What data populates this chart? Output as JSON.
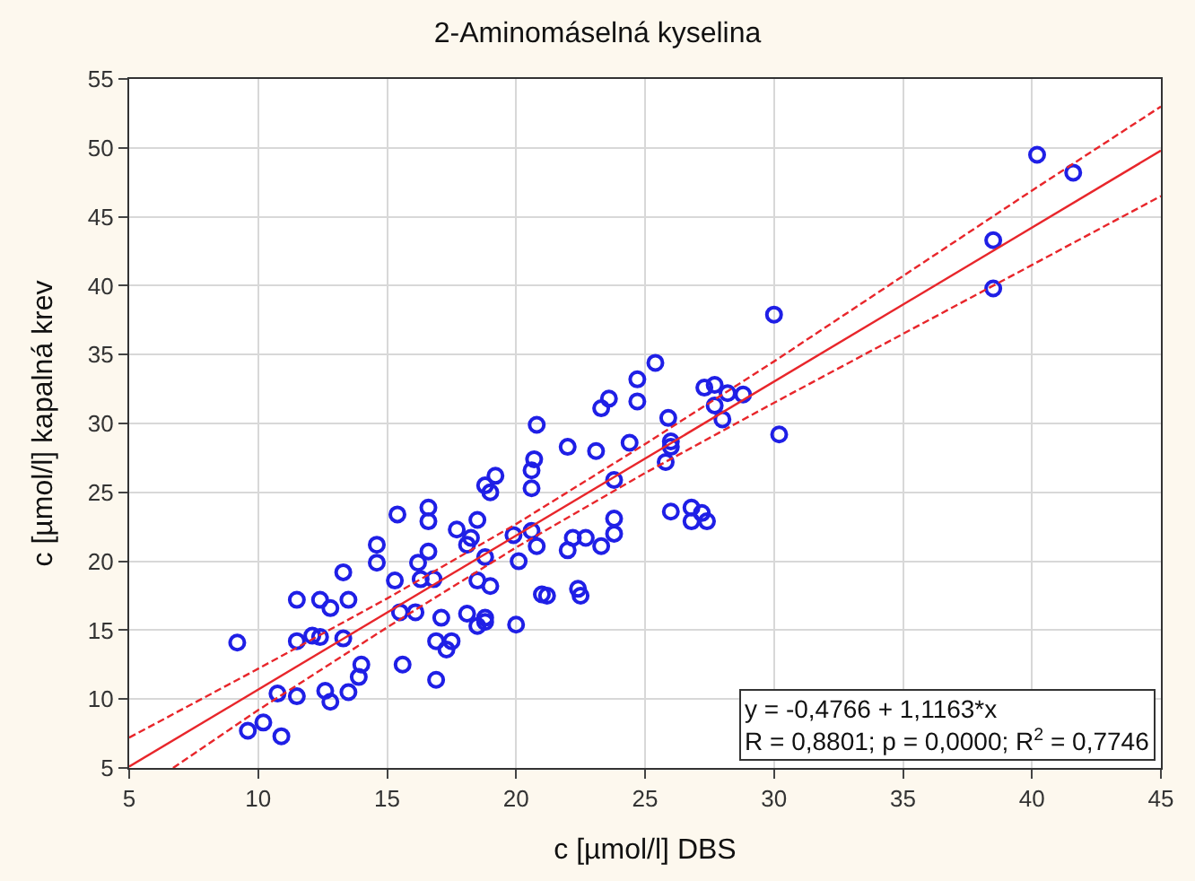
{
  "chart_data": {
    "type": "scatter",
    "title": "2-Aminomáselná kyselina",
    "xlabel": "c [µmol/l] DBS",
    "ylabel": "c [µmol/l] kapalná krev",
    "xlim": [
      5,
      45
    ],
    "xticks": [
      5,
      10,
      15,
      20,
      25,
      30,
      35,
      40,
      45
    ],
    "ylim": [
      5,
      55
    ],
    "yticks": [
      5,
      10,
      15,
      20,
      25,
      30,
      35,
      40,
      45,
      50,
      55
    ],
    "grid": true,
    "series": [
      {
        "marker": "circle",
        "color": "#1f1fe6",
        "x": [
          9.19,
          9.6,
          10.2,
          10.9,
          10.75,
          11.5,
          11.5,
          11.5,
          12.1,
          12.4,
          12.4,
          12.8,
          13.5,
          13.3,
          13.3,
          12.6,
          12.8,
          13.5,
          13.9,
          14.0,
          14.6,
          14.6,
          15.4,
          15.3,
          15.5,
          15.6,
          16.1,
          16.2,
          16.3,
          16.8,
          16.6,
          16.6,
          16.6,
          17.7,
          17.1,
          16.9,
          17.5,
          17.3,
          16.9,
          18.1,
          18.25,
          18.5,
          18.8,
          18.5,
          19.0,
          18.1,
          18.5,
          18.8,
          18.8,
          18.8,
          19.0,
          19.2,
          19.9,
          20.1,
          20.0,
          20.6,
          20.8,
          20.6,
          20.6,
          20.7,
          20.8,
          21.0,
          21.2,
          22.0,
          22.0,
          22.2,
          22.7,
          22.4,
          22.5,
          23.1,
          23.3,
          23.8,
          23.8,
          23.8,
          23.3,
          23.6,
          24.4,
          24.7,
          24.7,
          25.4,
          25.9,
          26.0,
          26.0,
          25.8,
          26.0,
          26.8,
          26.8,
          27.2,
          27.4,
          27.3,
          27.7,
          27.7,
          28.0,
          28.2,
          28.8,
          30.0,
          30.2,
          38.5,
          38.5,
          40.2,
          41.6
        ],
        "values": [
          14.1,
          7.7,
          8.3,
          7.3,
          10.4,
          17.2,
          14.2,
          10.2,
          14.6,
          14.5,
          17.2,
          16.6,
          17.2,
          19.2,
          14.4,
          10.6,
          9.8,
          10.5,
          11.6,
          12.5,
          21.2,
          19.9,
          23.4,
          18.6,
          16.3,
          12.5,
          16.3,
          19.9,
          18.7,
          18.7,
          20.7,
          23.9,
          22.9,
          22.3,
          15.9,
          14.2,
          14.2,
          13.6,
          11.4,
          21.2,
          21.7,
          23.0,
          20.3,
          18.6,
          18.2,
          16.2,
          15.3,
          15.9,
          15.6,
          25.5,
          25.0,
          26.2,
          21.9,
          20.0,
          15.4,
          22.2,
          21.1,
          25.3,
          26.6,
          27.4,
          29.9,
          17.6,
          17.5,
          28.3,
          20.8,
          21.7,
          21.7,
          18.0,
          17.5,
          28.0,
          21.1,
          22.0,
          23.1,
          25.9,
          31.1,
          31.8,
          28.6,
          31.6,
          33.2,
          34.4,
          30.4,
          28.7,
          28.3,
          27.2,
          23.6,
          23.9,
          22.9,
          23.5,
          22.9,
          32.6,
          32.8,
          31.3,
          30.3,
          32.2,
          32.1,
          37.9,
          29.2,
          43.3,
          39.8,
          49.5,
          48.2
        ]
      },
      {
        "type": "line",
        "marker": "none",
        "line_style": "solid",
        "color": "#e8262b",
        "x": [
          5,
          45
        ],
        "values": [
          5.1,
          49.8
        ]
      },
      {
        "type": "line",
        "marker": "none",
        "line_style": "dashed",
        "color": "#e8262b",
        "x": [
          5,
          10,
          15,
          20,
          25,
          30,
          35,
          40,
          45
        ],
        "values": [
          7.2,
          12.2,
          17.3,
          22.7,
          28.5,
          34.5,
          40.7,
          46.9,
          53.0
        ]
      },
      {
        "type": "line",
        "marker": "none",
        "line_style": "dashed",
        "color": "#e8262b",
        "x": [
          6.7,
          10,
          15,
          20,
          25,
          30,
          35,
          40,
          45
        ],
        "values": [
          5.0,
          9.2,
          15.2,
          21.0,
          26.4,
          31.5,
          36.5,
          41.5,
          46.5
        ]
      }
    ],
    "annotations": [
      "y = -0,4766 + 1,1163*x",
      "R = 0,8801; p = 0,0000; R$^{2}$ = 0,7746"
    ]
  }
}
